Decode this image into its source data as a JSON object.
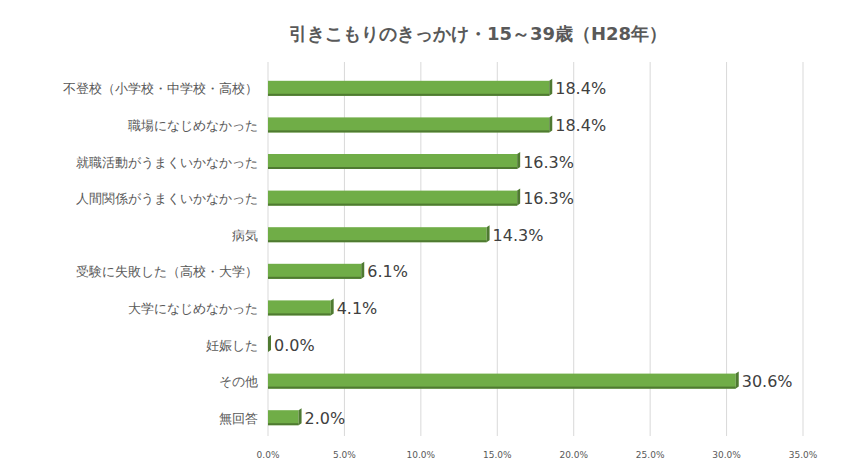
{
  "chart_data": {
    "type": "bar",
    "orientation": "horizontal",
    "title": "引きこもりのきっかけ・15～39歳（H28年）",
    "categories": [
      "不登校（小学校・中学校・高校）",
      "職場になじめなかった",
      "就職活動がうまくいかなかった",
      "人間関係がうまくいかなかった",
      "病気",
      "受験に失敗した（高校・大学）",
      "大学になじめなかった",
      "妊娠した",
      "その他",
      "無回答"
    ],
    "values": [
      18.4,
      18.4,
      16.3,
      16.3,
      14.3,
      6.1,
      4.1,
      0.0,
      30.6,
      2.0
    ],
    "value_labels": [
      "18.4%",
      "18.4%",
      "16.3%",
      "16.3%",
      "14.3%",
      "6.1%",
      "4.1%",
      "0.0%",
      "30.6%",
      "2.0%"
    ],
    "color": "#70ad47",
    "xlim": [
      0,
      35
    ],
    "xticks": [
      {
        "value": 0,
        "label": "0.0%"
      },
      {
        "value": 5,
        "label": "5.0%"
      },
      {
        "value": 10,
        "label": "10.0%"
      },
      {
        "value": 15,
        "label": "15.0%"
      },
      {
        "value": 20,
        "label": "20.0%"
      },
      {
        "value": 25,
        "label": "25.0%"
      },
      {
        "value": 30,
        "label": "30.0%"
      },
      {
        "value": 35,
        "label": "35.0%"
      }
    ],
    "grid": true,
    "data_labels": true
  }
}
